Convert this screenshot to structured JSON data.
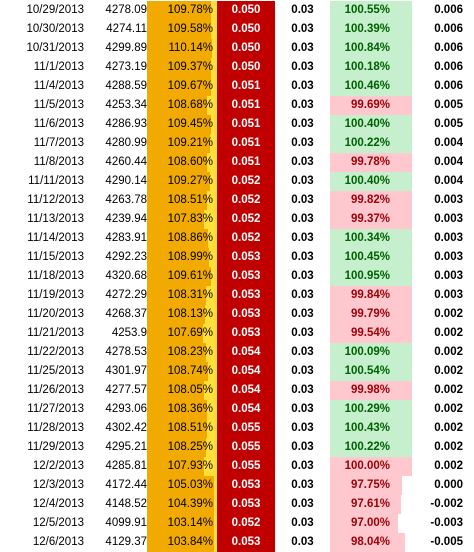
{
  "sheet": {
    "rows": [
      {
        "date": "10/29/2013",
        "price": "4278.09",
        "pct1": "109.78%",
        "pct1_fill": 0.92,
        "red": "0.050",
        "v1": "0.03",
        "pct2": "100.55%",
        "pct2_fill": 1.0,
        "pct2_status": "pos",
        "v2": "0.006"
      },
      {
        "date": "10/30/2013",
        "price": "4274.11",
        "pct1": "109.58%",
        "pct1_fill": 0.91,
        "red": "0.050",
        "v1": "0.03",
        "pct2": "100.39%",
        "pct2_fill": 1.0,
        "pct2_status": "pos",
        "v2": "0.006"
      },
      {
        "date": "10/31/2013",
        "price": "4299.89",
        "pct1": "110.14%",
        "pct1_fill": 0.93,
        "red": "0.050",
        "v1": "0.03",
        "pct2": "100.84%",
        "pct2_fill": 1.0,
        "pct2_status": "pos",
        "v2": "0.006"
      },
      {
        "date": "11/1/2013",
        "price": "4273.19",
        "pct1": "109.37%",
        "pct1_fill": 0.91,
        "red": "0.050",
        "v1": "0.03",
        "pct2": "100.18%",
        "pct2_fill": 1.0,
        "pct2_status": "pos",
        "v2": "0.006"
      },
      {
        "date": "11/4/2013",
        "price": "4288.59",
        "pct1": "109.67%",
        "pct1_fill": 0.92,
        "red": "0.051",
        "v1": "0.03",
        "pct2": "100.46%",
        "pct2_fill": 1.0,
        "pct2_status": "pos",
        "v2": "0.006"
      },
      {
        "date": "11/5/2013",
        "price": "4253.34",
        "pct1": "108.68%",
        "pct1_fill": 0.86,
        "red": "0.051",
        "v1": "0.03",
        "pct2": "99.69%",
        "pct2_fill": 1.0,
        "pct2_status": "neg",
        "v2": "0.005"
      },
      {
        "date": "11/6/2013",
        "price": "4286.93",
        "pct1": "109.45%",
        "pct1_fill": 0.91,
        "red": "0.051",
        "v1": "0.03",
        "pct2": "100.40%",
        "pct2_fill": 1.0,
        "pct2_status": "pos",
        "v2": "0.005"
      },
      {
        "date": "11/7/2013",
        "price": "4280.99",
        "pct1": "109.21%",
        "pct1_fill": 0.9,
        "red": "0.051",
        "v1": "0.03",
        "pct2": "100.22%",
        "pct2_fill": 1.0,
        "pct2_status": "pos",
        "v2": "0.004"
      },
      {
        "date": "11/8/2013",
        "price": "4260.44",
        "pct1": "108.60%",
        "pct1_fill": 0.86,
        "red": "0.051",
        "v1": "0.03",
        "pct2": "99.78%",
        "pct2_fill": 1.0,
        "pct2_status": "neg",
        "v2": "0.004"
      },
      {
        "date": "11/11/2013",
        "price": "4290.14",
        "pct1": "109.27%",
        "pct1_fill": 0.9,
        "red": "0.052",
        "v1": "0.03",
        "pct2": "100.40%",
        "pct2_fill": 1.0,
        "pct2_status": "pos",
        "v2": "0.004"
      },
      {
        "date": "11/12/2013",
        "price": "4263.78",
        "pct1": "108.51%",
        "pct1_fill": 0.86,
        "red": "0.052",
        "v1": "0.03",
        "pct2": "99.82%",
        "pct2_fill": 1.0,
        "pct2_status": "neg",
        "v2": "0.003"
      },
      {
        "date": "11/13/2013",
        "price": "4239.94",
        "pct1": "107.83%",
        "pct1_fill": 0.81,
        "red": "0.052",
        "v1": "0.03",
        "pct2": "99.37%",
        "pct2_fill": 1.0,
        "pct2_status": "neg",
        "v2": "0.003"
      },
      {
        "date": "11/14/2013",
        "price": "4283.91",
        "pct1": "108.86%",
        "pct1_fill": 0.87,
        "red": "0.052",
        "v1": "0.03",
        "pct2": "100.34%",
        "pct2_fill": 1.0,
        "pct2_status": "pos",
        "v2": "0.003"
      },
      {
        "date": "11/15/2013",
        "price": "4292.23",
        "pct1": "108.99%",
        "pct1_fill": 0.88,
        "red": "0.053",
        "v1": "0.03",
        "pct2": "100.45%",
        "pct2_fill": 1.0,
        "pct2_status": "pos",
        "v2": "0.003"
      },
      {
        "date": "11/18/2013",
        "price": "4320.68",
        "pct1": "109.61%",
        "pct1_fill": 0.92,
        "red": "0.053",
        "v1": "0.03",
        "pct2": "100.95%",
        "pct2_fill": 1.0,
        "pct2_status": "pos",
        "v2": "0.003"
      },
      {
        "date": "11/19/2013",
        "price": "4272.29",
        "pct1": "108.31%",
        "pct1_fill": 0.84,
        "red": "0.053",
        "v1": "0.03",
        "pct2": "99.84%",
        "pct2_fill": 1.0,
        "pct2_status": "neg",
        "v2": "0.003"
      },
      {
        "date": "11/20/2013",
        "price": "4268.37",
        "pct1": "108.13%",
        "pct1_fill": 0.83,
        "red": "0.053",
        "v1": "0.03",
        "pct2": "99.79%",
        "pct2_fill": 1.0,
        "pct2_status": "neg",
        "v2": "0.002"
      },
      {
        "date": "11/21/2013",
        "price": "4253.9",
        "pct1": "107.69%",
        "pct1_fill": 0.8,
        "red": "0.053",
        "v1": "0.03",
        "pct2": "99.54%",
        "pct2_fill": 1.0,
        "pct2_status": "neg",
        "v2": "0.002"
      },
      {
        "date": "11/22/2013",
        "price": "4278.53",
        "pct1": "108.23%",
        "pct1_fill": 0.84,
        "red": "0.054",
        "v1": "0.03",
        "pct2": "100.09%",
        "pct2_fill": 1.0,
        "pct2_status": "pos",
        "v2": "0.002"
      },
      {
        "date": "11/25/2013",
        "price": "4301.97",
        "pct1": "108.74%",
        "pct1_fill": 0.87,
        "red": "0.054",
        "v1": "0.03",
        "pct2": "100.54%",
        "pct2_fill": 1.0,
        "pct2_status": "pos",
        "v2": "0.002"
      },
      {
        "date": "11/26/2013",
        "price": "4277.57",
        "pct1": "108.05%",
        "pct1_fill": 0.82,
        "red": "0.054",
        "v1": "0.03",
        "pct2": "99.98%",
        "pct2_fill": 1.0,
        "pct2_status": "neg",
        "v2": "0.002"
      },
      {
        "date": "11/27/2013",
        "price": "4293.06",
        "pct1": "108.36%",
        "pct1_fill": 0.85,
        "red": "0.054",
        "v1": "0.03",
        "pct2": "100.29%",
        "pct2_fill": 1.0,
        "pct2_status": "pos",
        "v2": "0.002"
      },
      {
        "date": "11/28/2013",
        "price": "4302.42",
        "pct1": "108.51%",
        "pct1_fill": 0.86,
        "red": "0.055",
        "v1": "0.03",
        "pct2": "100.43%",
        "pct2_fill": 1.0,
        "pct2_status": "pos",
        "v2": "0.002"
      },
      {
        "date": "11/29/2013",
        "price": "4295.21",
        "pct1": "108.25%",
        "pct1_fill": 0.84,
        "red": "0.055",
        "v1": "0.03",
        "pct2": "100.22%",
        "pct2_fill": 1.0,
        "pct2_status": "pos",
        "v2": "0.002"
      },
      {
        "date": "12/2/2013",
        "price": "4285.81",
        "pct1": "107.93%",
        "pct1_fill": 0.82,
        "red": "0.055",
        "v1": "0.03",
        "pct2": "100.00%",
        "pct2_fill": 1.0,
        "pct2_status": "neg",
        "v2": "0.002"
      },
      {
        "date": "12/3/2013",
        "price": "4172.44",
        "pct1": "105.03%",
        "pct1_fill": 0.96,
        "red": "0.053",
        "v1": "0.03",
        "pct2": "97.75%",
        "pct2_fill": 0.88,
        "pct2_status": "neg",
        "v2": "0.000"
      },
      {
        "date": "12/4/2013",
        "price": "4148.52",
        "pct1": "104.39%",
        "pct1_fill": 0.96,
        "red": "0.053",
        "v1": "0.03",
        "pct2": "97.61%",
        "pct2_fill": 0.87,
        "pct2_status": "neg",
        "v2": "-0.002"
      },
      {
        "date": "12/5/2013",
        "price": "4099.91",
        "pct1": "103.14%",
        "pct1_fill": 0.96,
        "red": "0.052",
        "v1": "0.03",
        "pct2": "97.00%",
        "pct2_fill": 0.83,
        "pct2_status": "neg",
        "v2": "-0.003"
      },
      {
        "date": "12/6/2013",
        "price": "4129.37",
        "pct1": "103.84%",
        "pct1_fill": 0.96,
        "red": "0.053",
        "v1": "0.03",
        "pct2": "98.04%",
        "pct2_fill": 0.91,
        "pct2_status": "neg",
        "v2": "-0.005"
      }
    ]
  }
}
